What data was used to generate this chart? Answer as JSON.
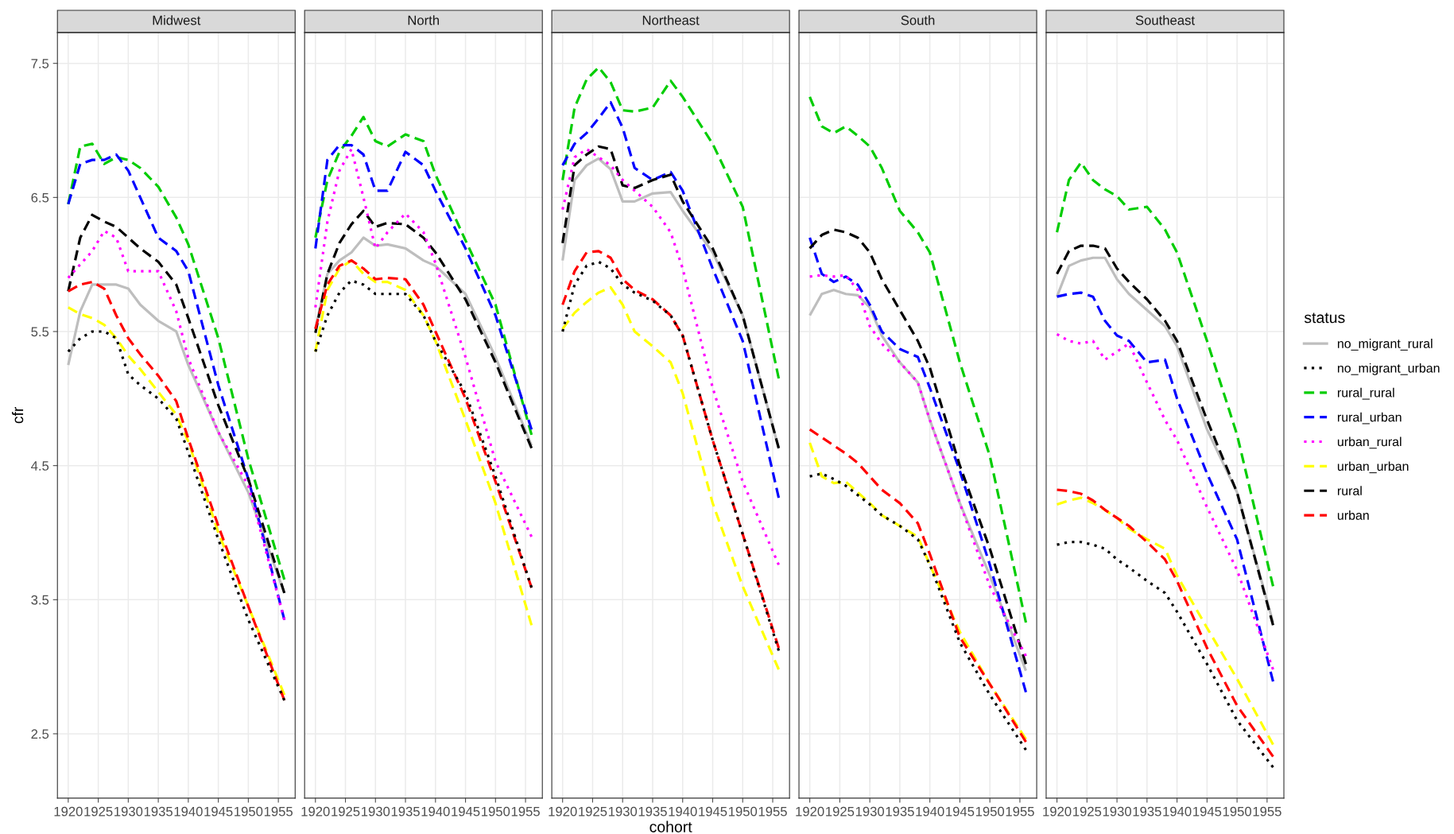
{
  "chart_data": [
    {
      "type": "line",
      "title": "Midwest",
      "ylabel": "cfr",
      "grid": true,
      "legend": "right",
      "legend_title": "status",
      "xlim": [
        1918.2,
        1957.8
      ],
      "xticks": [
        1920,
        1925,
        1930,
        1935,
        1940,
        1945,
        1950,
        1955
      ],
      "ylim": [
        2.02,
        7.73
      ],
      "yticks": [
        2.5,
        3.5,
        4.5,
        5.5,
        6.5,
        7.5
      ],
      "x": [
        1920,
        1922,
        1924,
        1926,
        1928,
        1930,
        1932,
        1935,
        1938,
        1940,
        1945,
        1950,
        1956
      ],
      "series": [
        {
          "name": "no_migrant_rural",
          "color": "#bebebe",
          "line_style": "solid",
          "values": [
            5.25,
            5.65,
            5.85,
            5.85,
            5.85,
            5.82,
            5.7,
            5.58,
            5.5,
            5.25,
            4.75,
            4.3,
            3.55
          ]
        },
        {
          "name": "no_migrant_urban",
          "color": "#000000",
          "line_style": "dotted",
          "values": [
            5.35,
            5.45,
            5.5,
            5.5,
            5.45,
            5.18,
            5.1,
            5.0,
            4.85,
            4.6,
            3.95,
            3.35,
            2.75
          ]
        },
        {
          "name": "rural_rural",
          "color": "#00cd00",
          "line_style": "dashed",
          "values": [
            6.45,
            6.88,
            6.9,
            6.75,
            6.8,
            6.78,
            6.72,
            6.58,
            6.35,
            6.15,
            5.45,
            4.55,
            3.65
          ]
        },
        {
          "name": "rural_urban",
          "color": "#0000ff",
          "line_style": "dashed",
          "values": [
            6.45,
            6.75,
            6.78,
            6.78,
            6.82,
            6.7,
            6.5,
            6.2,
            6.1,
            5.95,
            5.1,
            4.4,
            3.35
          ]
        },
        {
          "name": "urban_rural",
          "color": "#ff00ff",
          "line_style": "dotted",
          "values": [
            5.9,
            6.0,
            6.1,
            6.25,
            6.2,
            5.95,
            5.95,
            5.95,
            5.65,
            5.3,
            4.75,
            4.35,
            3.35
          ]
        },
        {
          "name": "urban_urban",
          "color": "#ffff00",
          "line_style": "dashed",
          "values": [
            5.68,
            5.63,
            5.6,
            5.55,
            5.45,
            5.32,
            5.22,
            5.05,
            4.88,
            4.68,
            4.0,
            3.45,
            2.79
          ]
        },
        {
          "name": "rural",
          "color": "#000000",
          "line_style": "dashed",
          "values": [
            5.8,
            6.2,
            6.37,
            6.32,
            6.28,
            6.2,
            6.12,
            6.02,
            5.85,
            5.6,
            4.95,
            4.4,
            3.55
          ]
        },
        {
          "name": "urban",
          "color": "#ff0000",
          "line_style": "dashed",
          "values": [
            5.8,
            5.85,
            5.87,
            5.82,
            5.62,
            5.45,
            5.33,
            5.17,
            4.98,
            4.7,
            4.05,
            3.45,
            2.75
          ]
        }
      ]
    },
    {
      "type": "line",
      "title": "North",
      "grid": true,
      "tick_labels": "x",
      "xlim": [
        1918.2,
        1957.8
      ],
      "xticks": [
        1920,
        1925,
        1930,
        1935,
        1940,
        1945,
        1950,
        1955
      ],
      "ylim": [
        2.02,
        7.73
      ],
      "yticks": [
        2.5,
        3.5,
        4.5,
        5.5,
        6.5,
        7.5
      ],
      "x": [
        1920,
        1922,
        1924,
        1926,
        1928,
        1930,
        1932,
        1935,
        1938,
        1940,
        1945,
        1950,
        1956
      ],
      "series": [
        {
          "color": "#bebebe",
          "line_style": "solid",
          "values": [
            5.52,
            5.93,
            6.03,
            6.09,
            6.2,
            6.14,
            6.15,
            6.12,
            6.03,
            5.99,
            5.78,
            5.31,
            4.65
          ]
        },
        {
          "color": "#000000",
          "line_style": "dotted",
          "values": [
            5.35,
            5.62,
            5.79,
            5.88,
            5.85,
            5.78,
            5.78,
            5.78,
            5.62,
            5.43,
            5.04,
            4.42,
            3.59
          ]
        },
        {
          "color": "#00cd00",
          "line_style": "dashed",
          "values": [
            6.2,
            6.63,
            6.84,
            6.96,
            7.1,
            6.92,
            6.88,
            6.97,
            6.92,
            6.67,
            6.18,
            5.7,
            4.73
          ]
        },
        {
          "color": "#0000ff",
          "line_style": "dashed",
          "values": [
            6.12,
            6.78,
            6.89,
            6.89,
            6.82,
            6.55,
            6.55,
            6.84,
            6.74,
            6.55,
            6.12,
            5.62,
            4.77
          ]
        },
        {
          "color": "#ff00ff",
          "line_style": "dotted",
          "values": [
            5.68,
            6.32,
            6.7,
            6.86,
            6.5,
            6.12,
            6.24,
            6.38,
            6.24,
            6.01,
            5.31,
            4.53,
            3.97
          ]
        },
        {
          "color": "#ffff00",
          "line_style": "dashed",
          "values": [
            5.35,
            5.81,
            5.97,
            6.03,
            5.93,
            5.87,
            5.87,
            5.81,
            5.62,
            5.43,
            4.84,
            4.22,
            3.31
          ]
        },
        {
          "color": "#000000",
          "line_style": "dashed",
          "values": [
            5.49,
            5.93,
            6.16,
            6.3,
            6.4,
            6.28,
            6.31,
            6.3,
            6.2,
            6.09,
            5.74,
            5.27,
            4.63
          ]
        },
        {
          "color": "#ff0000",
          "line_style": "dashed",
          "values": [
            5.52,
            5.85,
            5.99,
            6.03,
            5.97,
            5.89,
            5.9,
            5.89,
            5.7,
            5.5,
            5.0,
            4.38,
            3.59
          ]
        }
      ]
    },
    {
      "type": "line",
      "title": "Northeast",
      "xlabel": "cohort",
      "grid": true,
      "tick_labels": "x",
      "xlim": [
        1918.2,
        1957.8
      ],
      "xticks": [
        1920,
        1925,
        1930,
        1935,
        1940,
        1945,
        1950,
        1955
      ],
      "ylim": [
        2.02,
        7.73
      ],
      "yticks": [
        2.5,
        3.5,
        4.5,
        5.5,
        6.5,
        7.5
      ],
      "x": [
        1920,
        1922,
        1924,
        1926,
        1928,
        1930,
        1932,
        1935,
        1938,
        1940,
        1945,
        1950,
        1956
      ],
      "series": [
        {
          "color": "#bebebe",
          "line_style": "solid",
          "values": [
            6.03,
            6.63,
            6.74,
            6.79,
            6.71,
            6.47,
            6.47,
            6.53,
            6.54,
            6.4,
            6.09,
            5.62,
            4.63
          ]
        },
        {
          "color": "#000000",
          "line_style": "dotted",
          "values": [
            5.5,
            5.85,
            5.99,
            6.02,
            5.97,
            5.85,
            5.79,
            5.73,
            5.62,
            5.47,
            4.69,
            3.99,
            3.12
          ]
        },
        {
          "color": "#00cd00",
          "line_style": "dashed",
          "values": [
            6.63,
            7.17,
            7.38,
            7.47,
            7.36,
            7.15,
            7.14,
            7.17,
            7.37,
            7.25,
            6.9,
            6.43,
            5.15
          ]
        },
        {
          "color": "#0000ff",
          "line_style": "dashed",
          "values": [
            6.74,
            6.9,
            6.98,
            7.09,
            7.21,
            7.02,
            6.72,
            6.63,
            6.69,
            6.55,
            5.97,
            5.43,
            4.26
          ]
        },
        {
          "color": "#ff00ff",
          "line_style": "dotted",
          "values": [
            6.41,
            6.8,
            6.86,
            6.8,
            6.74,
            6.63,
            6.55,
            6.43,
            6.24,
            5.97,
            5.08,
            4.38,
            3.76
          ]
        },
        {
          "color": "#ffff00",
          "line_style": "dashed",
          "values": [
            5.52,
            5.64,
            5.72,
            5.79,
            5.83,
            5.7,
            5.5,
            5.39,
            5.27,
            5.04,
            4.22,
            3.6,
            2.98
          ]
        },
        {
          "color": "#000000",
          "line_style": "dashed",
          "values": [
            6.16,
            6.74,
            6.82,
            6.88,
            6.86,
            6.59,
            6.57,
            6.63,
            6.67,
            6.47,
            6.12,
            5.62,
            4.63
          ]
        },
        {
          "color": "#ff0000",
          "line_style": "dashed",
          "values": [
            5.7,
            5.95,
            6.09,
            6.1,
            6.05,
            5.89,
            5.81,
            5.74,
            5.62,
            5.47,
            4.69,
            3.99,
            3.14
          ]
        }
      ]
    },
    {
      "type": "line",
      "title": "South",
      "grid": true,
      "tick_labels": "x",
      "xlim": [
        1918.2,
        1957.8
      ],
      "xticks": [
        1920,
        1925,
        1930,
        1935,
        1940,
        1945,
        1950,
        1955
      ],
      "ylim": [
        2.02,
        7.73
      ],
      "yticks": [
        2.5,
        3.5,
        4.5,
        5.5,
        6.5,
        7.5
      ],
      "x": [
        1920,
        1922,
        1924,
        1926,
        1928,
        1930,
        1932,
        1935,
        1938,
        1940,
        1945,
        1950,
        1956
      ],
      "series": [
        {
          "color": "#bebebe",
          "line_style": "solid",
          "values": [
            5.62,
            5.78,
            5.81,
            5.78,
            5.77,
            5.68,
            5.47,
            5.27,
            5.12,
            4.84,
            4.22,
            3.68,
            2.97
          ]
        },
        {
          "color": "#000000",
          "line_style": "dotted",
          "values": [
            4.42,
            4.44,
            4.4,
            4.35,
            4.28,
            4.21,
            4.13,
            4.05,
            3.95,
            3.76,
            3.18,
            2.79,
            2.38
          ]
        },
        {
          "color": "#00cd00",
          "line_style": "dashed",
          "values": [
            7.25,
            7.03,
            6.98,
            7.03,
            6.96,
            6.88,
            6.72,
            6.4,
            6.24,
            6.09,
            5.27,
            4.57,
            3.33
          ]
        },
        {
          "color": "#0000ff",
          "line_style": "dashed",
          "values": [
            6.2,
            5.93,
            5.87,
            5.91,
            5.85,
            5.7,
            5.5,
            5.37,
            5.31,
            5.08,
            4.46,
            3.76,
            2.81
          ]
        },
        {
          "color": "#ff00ff",
          "line_style": "dotted",
          "values": [
            5.91,
            5.92,
            5.91,
            5.92,
            5.81,
            5.54,
            5.41,
            5.27,
            5.12,
            4.84,
            4.22,
            3.6,
            3.08
          ]
        },
        {
          "color": "#ffff00",
          "line_style": "dashed",
          "values": [
            4.67,
            4.42,
            4.37,
            4.38,
            4.3,
            4.22,
            4.13,
            4.05,
            3.97,
            3.76,
            3.26,
            2.87,
            2.46
          ]
        },
        {
          "color": "#000000",
          "line_style": "dashed",
          "values": [
            6.12,
            6.22,
            6.26,
            6.24,
            6.2,
            6.09,
            5.89,
            5.66,
            5.43,
            5.23,
            4.5,
            3.88,
            3.02
          ]
        },
        {
          "color": "#ff0000",
          "line_style": "dashed",
          "values": [
            4.77,
            4.71,
            4.65,
            4.59,
            4.52,
            4.42,
            4.32,
            4.22,
            4.07,
            3.84,
            3.22,
            2.87,
            2.44
          ]
        }
      ]
    },
    {
      "type": "line",
      "title": "Southeast",
      "grid": true,
      "tick_labels": "x",
      "xlim": [
        1918.2,
        1957.8
      ],
      "xticks": [
        1920,
        1925,
        1930,
        1935,
        1940,
        1945,
        1950,
        1955
      ],
      "ylim": [
        2.02,
        7.73
      ],
      "yticks": [
        2.5,
        3.5,
        4.5,
        5.5,
        6.5,
        7.5
      ],
      "x": [
        1920,
        1922,
        1924,
        1926,
        1928,
        1930,
        1932,
        1935,
        1938,
        1940,
        1945,
        1950,
        1956
      ],
      "series": [
        {
          "color": "#bebebe",
          "line_style": "solid",
          "values": [
            5.76,
            5.99,
            6.03,
            6.05,
            6.05,
            5.89,
            5.78,
            5.66,
            5.54,
            5.39,
            4.77,
            4.3,
            3.33
          ]
        },
        {
          "color": "#000000",
          "line_style": "dotted",
          "values": [
            3.91,
            3.93,
            3.93,
            3.91,
            3.88,
            3.8,
            3.74,
            3.64,
            3.55,
            3.41,
            3.02,
            2.6,
            2.25
          ]
        },
        {
          "color": "#00cd00",
          "line_style": "dashed",
          "values": [
            6.24,
            6.63,
            6.76,
            6.63,
            6.56,
            6.51,
            6.41,
            6.43,
            6.26,
            6.09,
            5.43,
            4.73,
            3.6
          ]
        },
        {
          "color": "#0000ff",
          "line_style": "dashed",
          "values": [
            5.76,
            5.78,
            5.79,
            5.76,
            5.58,
            5.47,
            5.43,
            5.27,
            5.29,
            5.0,
            4.44,
            3.95,
            2.89
          ]
        },
        {
          "color": "#ff00ff",
          "line_style": "dotted",
          "values": [
            5.48,
            5.43,
            5.41,
            5.43,
            5.29,
            5.35,
            5.41,
            5.12,
            4.84,
            4.69,
            4.19,
            3.72,
            2.98
          ]
        },
        {
          "color": "#ffff00",
          "line_style": "dashed",
          "values": [
            4.21,
            4.24,
            4.26,
            4.22,
            4.17,
            4.11,
            4.03,
            3.95,
            3.88,
            3.68,
            3.29,
            2.91,
            2.42
          ]
        },
        {
          "color": "#000000",
          "line_style": "dashed",
          "values": [
            5.93,
            6.1,
            6.14,
            6.14,
            6.12,
            5.97,
            5.87,
            5.74,
            5.58,
            5.43,
            4.84,
            4.3,
            3.31
          ]
        },
        {
          "color": "#ff0000",
          "line_style": "dashed",
          "values": [
            4.32,
            4.31,
            4.29,
            4.24,
            4.17,
            4.11,
            4.05,
            3.93,
            3.8,
            3.64,
            3.14,
            2.71,
            2.33
          ]
        }
      ]
    }
  ]
}
